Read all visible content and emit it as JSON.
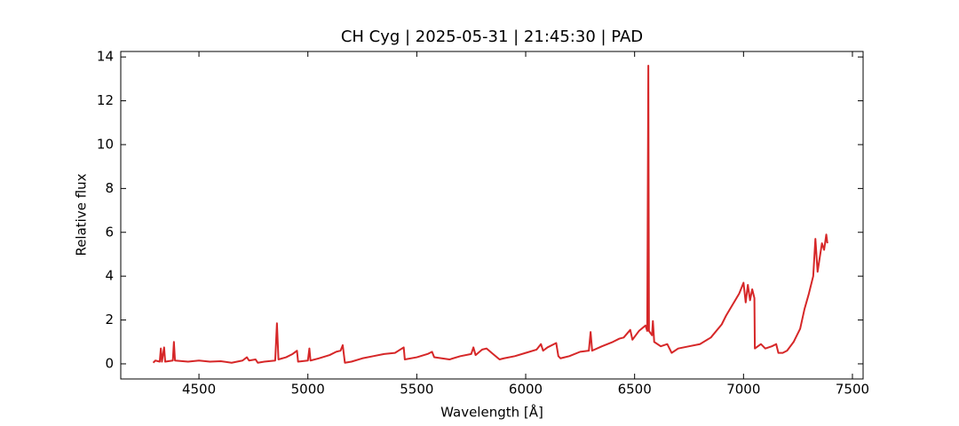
{
  "chart_data": {
    "type": "line",
    "title": "CH Cyg | 2025-05-31 | 21:45:30 | PAD",
    "x_label": "Wavelength [Å]",
    "y_label": "Relative flux",
    "color": "#d62728",
    "xlim": [
      4141,
      7549
    ],
    "ylim": [
      -0.69,
      14.25
    ],
    "xticks": [
      4500,
      5000,
      5500,
      6000,
      6500,
      7000,
      7500
    ],
    "yticks": [
      0,
      2,
      4,
      6,
      8,
      10,
      12,
      14
    ],
    "x": [
      4290,
      4300,
      4320,
      4325,
      4330,
      4340,
      4345,
      4380,
      4385,
      4390,
      4450,
      4500,
      4550,
      4600,
      4650,
      4700,
      4720,
      4730,
      4760,
      4770,
      4800,
      4850,
      4858,
      4865,
      4900,
      4930,
      4950,
      4955,
      5000,
      5007,
      5012,
      5050,
      5100,
      5130,
      5150,
      5160,
      5170,
      5200,
      5250,
      5300,
      5350,
      5400,
      5440,
      5445,
      5500,
      5550,
      5570,
      5580,
      5650,
      5700,
      5750,
      5760,
      5770,
      5800,
      5820,
      5850,
      5880,
      5900,
      5950,
      6000,
      6050,
      6070,
      6080,
      6100,
      6140,
      6150,
      6160,
      6200,
      6250,
      6290,
      6298,
      6305,
      6350,
      6400,
      6430,
      6450,
      6480,
      6490,
      6520,
      6550,
      6558,
      6563,
      6566,
      6580,
      6584,
      6590,
      6620,
      6650,
      6670,
      6700,
      6750,
      6800,
      6850,
      6900,
      6920,
      6950,
      6980,
      7000,
      7010,
      7020,
      7030,
      7040,
      7050,
      7052,
      7080,
      7100,
      7130,
      7150,
      7160,
      7180,
      7200,
      7230,
      7260,
      7280,
      7300,
      7320,
      7330,
      7340,
      7360,
      7370,
      7380,
      7385
    ],
    "values": [
      0.05,
      0.15,
      0.1,
      0.7,
      0.1,
      0.75,
      0.1,
      0.15,
      1.0,
      0.15,
      0.1,
      0.15,
      0.1,
      0.12,
      0.05,
      0.15,
      0.3,
      0.15,
      0.2,
      0.05,
      0.1,
      0.15,
      1.85,
      0.2,
      0.3,
      0.45,
      0.6,
      0.1,
      0.15,
      0.7,
      0.15,
      0.25,
      0.4,
      0.55,
      0.6,
      0.85,
      0.05,
      0.1,
      0.25,
      0.35,
      0.45,
      0.5,
      0.75,
      0.2,
      0.3,
      0.45,
      0.55,
      0.3,
      0.2,
      0.35,
      0.45,
      0.75,
      0.4,
      0.65,
      0.7,
      0.45,
      0.2,
      0.25,
      0.35,
      0.5,
      0.65,
      0.9,
      0.6,
      0.75,
      0.95,
      0.35,
      0.25,
      0.35,
      0.55,
      0.6,
      1.45,
      0.6,
      0.8,
      1.0,
      1.15,
      1.2,
      1.55,
      1.1,
      1.5,
      1.75,
      1.5,
      13.6,
      1.5,
      1.3,
      1.95,
      1.0,
      0.8,
      0.9,
      0.5,
      0.7,
      0.8,
      0.9,
      1.2,
      1.8,
      2.2,
      2.7,
      3.2,
      3.7,
      2.8,
      3.6,
      2.9,
      3.4,
      3.0,
      0.7,
      0.9,
      0.7,
      0.8,
      0.9,
      0.5,
      0.5,
      0.6,
      1.0,
      1.6,
      2.5,
      3.2,
      4.0,
      5.7,
      4.2,
      5.5,
      5.2,
      5.9,
      5.5
    ]
  }
}
